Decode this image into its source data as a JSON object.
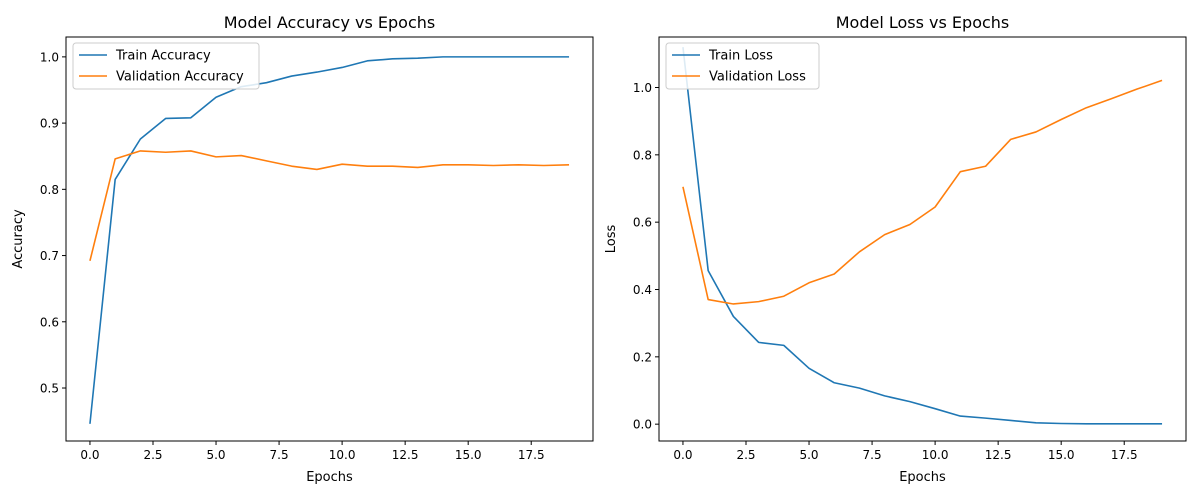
{
  "colors": {
    "series1": "#1f77b4",
    "series2": "#ff7f0e"
  },
  "chart_data": [
    {
      "type": "line",
      "title": "Model Accuracy vs Epochs",
      "xlabel": "Epochs",
      "ylabel": "Accuracy",
      "xlim": [
        -0.95,
        19.95
      ],
      "ylim": [
        0.42,
        1.03
      ],
      "xticks": [
        0.0,
        2.5,
        5.0,
        7.5,
        10.0,
        12.5,
        15.0,
        17.5
      ],
      "xtick_labels": [
        "0.0",
        "2.5",
        "5.0",
        "7.5",
        "10.0",
        "12.5",
        "15.0",
        "17.5"
      ],
      "yticks": [
        0.5,
        0.6,
        0.7,
        0.8,
        0.9,
        1.0
      ],
      "ytick_labels": [
        "0.5",
        "0.6",
        "0.7",
        "0.8",
        "0.9",
        "1.0"
      ],
      "grid": false,
      "legend_position": "top-left",
      "x": [
        0,
        1,
        2,
        3,
        4,
        5,
        6,
        7,
        8,
        9,
        10,
        11,
        12,
        13,
        14,
        15,
        16,
        17,
        18,
        19
      ],
      "series": [
        {
          "name": "Train Accuracy",
          "values": [
            0.446,
            0.815,
            0.876,
            0.907,
            0.908,
            0.939,
            0.955,
            0.961,
            0.971,
            0.977,
            0.984,
            0.994,
            0.997,
            0.998,
            1.0,
            1.0,
            1.0,
            1.0,
            1.0,
            1.0
          ]
        },
        {
          "name": "Validation Accuracy",
          "values": [
            0.692,
            0.846,
            0.858,
            0.856,
            0.858,
            0.849,
            0.851,
            0.843,
            0.835,
            0.83,
            0.838,
            0.835,
            0.835,
            0.833,
            0.837,
            0.837,
            0.836,
            0.837,
            0.836,
            0.837
          ]
        }
      ]
    },
    {
      "type": "line",
      "title": "Model Loss vs Epochs",
      "xlabel": "Epochs",
      "ylabel": "Loss",
      "xlim": [
        -0.95,
        19.95
      ],
      "ylim": [
        -0.05,
        1.15
      ],
      "xticks": [
        0.0,
        2.5,
        5.0,
        7.5,
        10.0,
        12.5,
        15.0,
        17.5
      ],
      "xtick_labels": [
        "0.0",
        "2.5",
        "5.0",
        "7.5",
        "10.0",
        "12.5",
        "15.0",
        "17.5"
      ],
      "yticks": [
        0.0,
        0.2,
        0.4,
        0.6,
        0.8,
        1.0
      ],
      "ytick_labels": [
        "0.0",
        "0.2",
        "0.4",
        "0.6",
        "0.8",
        "1.0"
      ],
      "grid": false,
      "legend_position": "top-left",
      "x": [
        0,
        1,
        2,
        3,
        4,
        5,
        6,
        7,
        8,
        9,
        10,
        11,
        12,
        13,
        14,
        15,
        16,
        17,
        18,
        19
      ],
      "series": [
        {
          "name": "Train Loss",
          "values": [
            1.12,
            0.456,
            0.32,
            0.243,
            0.234,
            0.166,
            0.123,
            0.107,
            0.084,
            0.067,
            0.046,
            0.024,
            0.018,
            0.011,
            0.004,
            0.002,
            0.001,
            0.001,
            0.001,
            0.001
          ]
        },
        {
          "name": "Validation Loss",
          "values": [
            0.705,
            0.37,
            0.357,
            0.364,
            0.38,
            0.42,
            0.446,
            0.512,
            0.563,
            0.593,
            0.645,
            0.75,
            0.766,
            0.846,
            0.868,
            0.905,
            0.94,
            0.967,
            0.995,
            1.021
          ]
        }
      ]
    }
  ]
}
